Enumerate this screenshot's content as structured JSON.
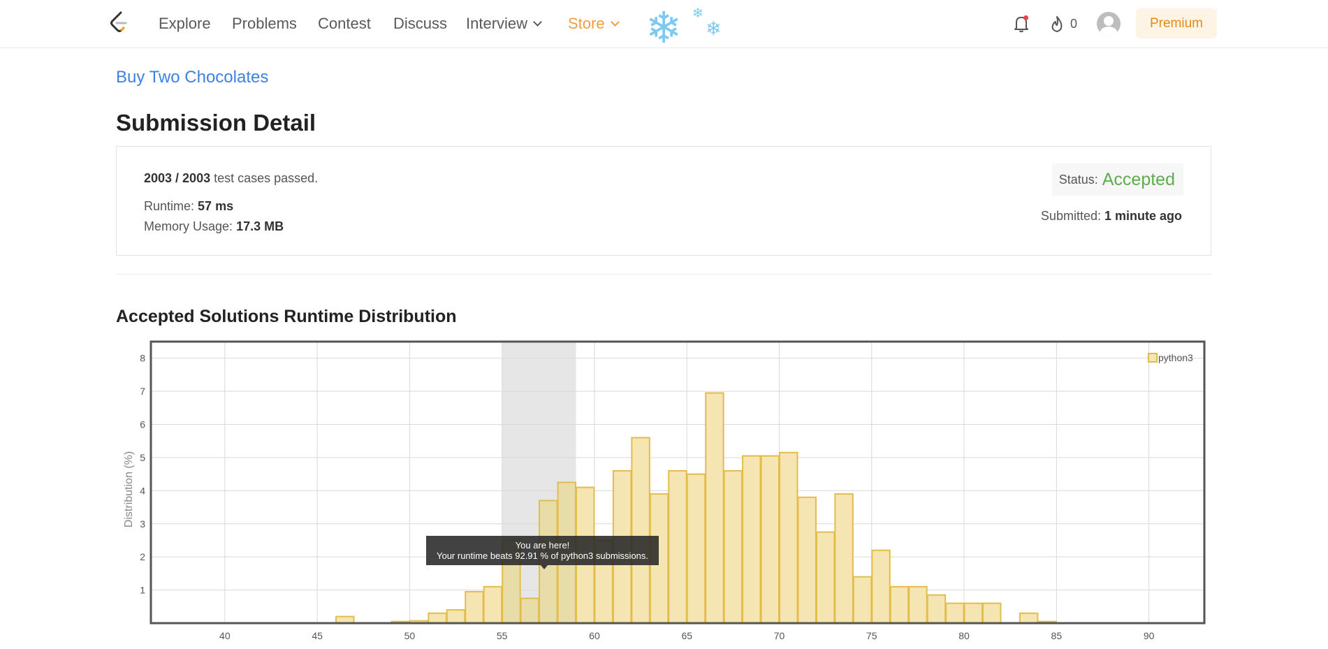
{
  "nav": {
    "links": [
      "Explore",
      "Problems",
      "Contest",
      "Discuss",
      "Interview",
      "Store"
    ],
    "streak_count": "0",
    "premium_label": "Premium"
  },
  "problem": {
    "title": "Buy Two Chocolates"
  },
  "page": {
    "title": "Submission Detail"
  },
  "submission": {
    "cases_passed": "2003 / 2003",
    "cases_suffix": "test cases passed.",
    "runtime_label": "Runtime:",
    "runtime_value": "57 ms",
    "memory_label": "Memory Usage:",
    "memory_value": "17.3 MB",
    "status_label": "Status:",
    "status_value": "Accepted",
    "submitted_label": "Submitted:",
    "submitted_value": "1 minute ago"
  },
  "colors": {
    "accent_blue": "#3c83e0",
    "accepted_green": "#5cae4a",
    "store_orange": "#ef9d3f",
    "bar_fill": "#f5e5b3",
    "bar_stroke": "#e2bd4a"
  },
  "section": {
    "runtime_distribution_title": "Accepted Solutions Runtime Distribution"
  },
  "tooltip": {
    "line1": "You are here!",
    "line2": "Your runtime beats 92.91 % of python3 submissions."
  },
  "chart_data": {
    "type": "bar",
    "ylabel": "Distribution (%)",
    "xlabel": "",
    "xlim": [
      36,
      93
    ],
    "ylim": [
      0,
      8.5
    ],
    "xticks": [
      40,
      45,
      50,
      55,
      60,
      65,
      70,
      75,
      80,
      85,
      90
    ],
    "yticks": [
      1,
      2,
      3,
      4,
      5,
      6,
      7,
      8
    ],
    "grid": true,
    "legend_position": "top-right",
    "highlight_range": [
      55,
      59
    ],
    "series": [
      {
        "name": "python3",
        "x": [
          46,
          49,
          50,
          51,
          52,
          53,
          54,
          55,
          56,
          57,
          58,
          59,
          60,
          61,
          62,
          63,
          64,
          65,
          66,
          67,
          68,
          69,
          70,
          71,
          72,
          73,
          74,
          75,
          76,
          77,
          78,
          79,
          80,
          81,
          83,
          84
        ],
        "values": [
          0.2,
          0.05,
          0.07,
          0.3,
          0.4,
          0.95,
          1.1,
          2.5,
          0.75,
          3.7,
          4.25,
          4.1,
          2.5,
          4.6,
          5.6,
          3.9,
          4.6,
          4.5,
          6.95,
          4.6,
          5.05,
          5.05,
          5.15,
          3.8,
          2.75,
          3.9,
          1.4,
          2.2,
          1.1,
          1.1,
          0.85,
          0.6,
          0.6,
          0.6,
          0.3,
          0.05
        ]
      }
    ]
  }
}
